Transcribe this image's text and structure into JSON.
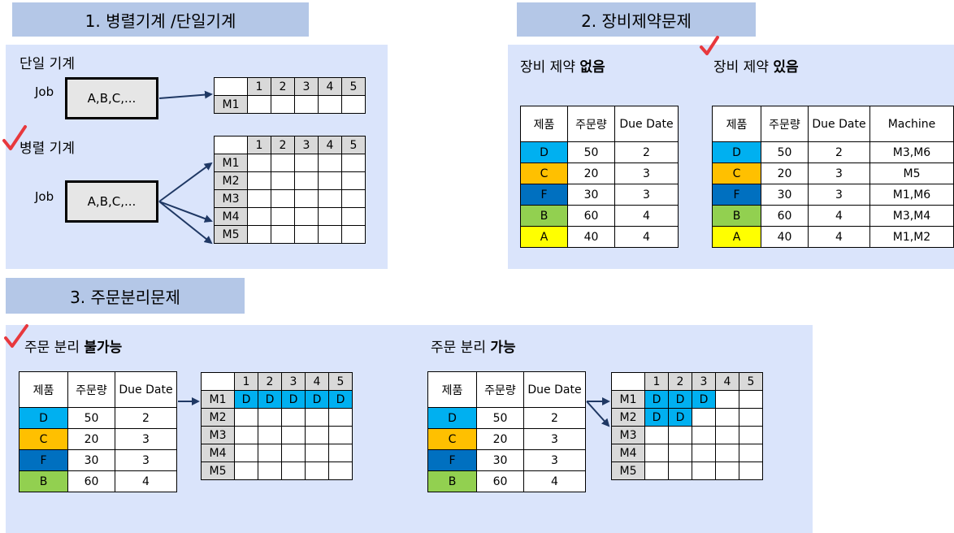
{
  "section1": {
    "title": "1. 병렬기계 /단일기계",
    "single_label": "단일 기계",
    "parallel_label": "병렬 기계",
    "job_label": "Job",
    "job_box": "A,B,C,...",
    "columns": [
      "1",
      "2",
      "3",
      "4",
      "5"
    ],
    "single_machines": [
      "M1"
    ],
    "parallel_machines": [
      "M1",
      "M2",
      "M3",
      "M4",
      "M5"
    ]
  },
  "section2": {
    "title": "2. 장비제약문제",
    "without_prefix": "장비 제약 ",
    "without_bold": "없음",
    "with_prefix": "장비 제약 ",
    "with_bold": "있음",
    "table_without": {
      "headers": [
        "제품",
        "주문량",
        "Due Date"
      ],
      "rows": [
        {
          "product": "D",
          "qty": "50",
          "due": "2",
          "color": "#00b0f0"
        },
        {
          "product": "C",
          "qty": "20",
          "due": "3",
          "color": "#ffc000"
        },
        {
          "product": "F",
          "qty": "30",
          "due": "3",
          "color": "#0070c0"
        },
        {
          "product": "B",
          "qty": "60",
          "due": "4",
          "color": "#92d050"
        },
        {
          "product": "A",
          "qty": "40",
          "due": "4",
          "color": "#ffff00"
        }
      ]
    },
    "table_with": {
      "headers": [
        "제품",
        "주문량",
        "Due Date",
        "Machine"
      ],
      "rows": [
        {
          "product": "D",
          "qty": "50",
          "due": "2",
          "machine": "M3,M6"
        },
        {
          "product": "C",
          "qty": "20",
          "due": "3",
          "machine": "M5"
        },
        {
          "product": "F",
          "qty": "30",
          "due": "3",
          "machine": "M1,M6"
        },
        {
          "product": "B",
          "qty": "60",
          "due": "4",
          "machine": "M3,M4"
        },
        {
          "product": "A",
          "qty": "40",
          "due": "4",
          "machine": "M1,M2"
        }
      ]
    }
  },
  "section3": {
    "title": "3. 주문분리문제",
    "not_possible_prefix": "주문 분리 ",
    "not_possible_bold": "불가능",
    "possible_prefix": "주문 분리 ",
    "possible_bold": "가능",
    "order_table": {
      "headers": [
        "제품",
        "주문량",
        "Due Date"
      ],
      "rows": [
        {
          "product": "D",
          "qty": "50",
          "due": "2"
        },
        {
          "product": "C",
          "qty": "20",
          "due": "3"
        },
        {
          "product": "F",
          "qty": "30",
          "due": "3"
        },
        {
          "product": "B",
          "qty": "60",
          "due": "4"
        }
      ]
    },
    "columns": [
      "1",
      "2",
      "3",
      "4",
      "5"
    ],
    "machines": [
      "M1",
      "M2",
      "M3",
      "M4",
      "M5"
    ],
    "schedule_not_possible": {
      "M1": [
        "D",
        "D",
        "D",
        "D",
        "D"
      ],
      "M2": [],
      "M3": [],
      "M4": [],
      "M5": []
    },
    "schedule_possible": {
      "M1": [
        "D",
        "D",
        "D"
      ],
      "M2": [
        "D",
        "D"
      ],
      "M3": [],
      "M4": [],
      "M5": []
    }
  },
  "colors": {
    "panel": "#dae4fb",
    "title_box": "#b4c7e7",
    "check": "#e8383d",
    "arrow": "#1f3864"
  }
}
